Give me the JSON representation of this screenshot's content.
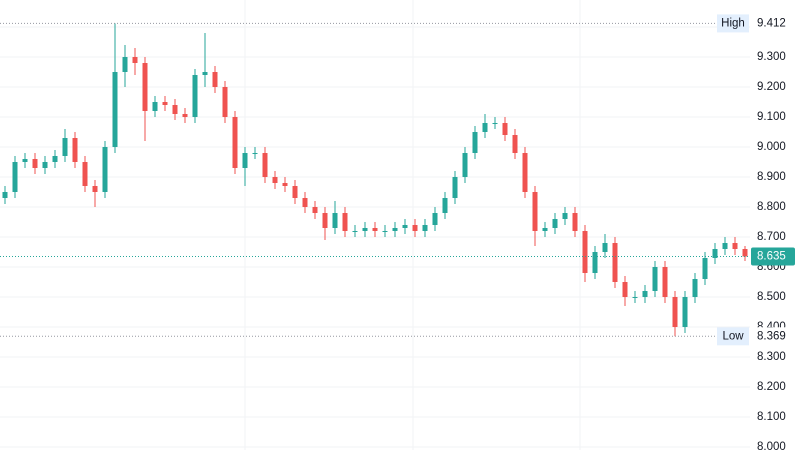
{
  "chart_data": {
    "type": "candlestick",
    "open": [
      8.83,
      8.85,
      8.95,
      8.96,
      8.93,
      8.95,
      8.97,
      9.03,
      8.95,
      8.87,
      8.85,
      9.0,
      9.25,
      9.3,
      9.28,
      9.12,
      9.15,
      9.14,
      9.11,
      9.1,
      9.24,
      9.25,
      9.2,
      9.1,
      8.93,
      8.98,
      8.98,
      8.9,
      8.88,
      8.87,
      8.83,
      8.8,
      8.78,
      8.73,
      8.78,
      8.72,
      8.72,
      8.73,
      8.72,
      8.72,
      8.73,
      8.74,
      8.72,
      8.74,
      8.78,
      8.83,
      8.9,
      8.98,
      9.05,
      9.08,
      9.08,
      9.04,
      8.98,
      8.85,
      8.72,
      8.73,
      8.76,
      8.78,
      8.72,
      8.58,
      8.65,
      8.68,
      8.55,
      8.5,
      8.5,
      8.52,
      8.6,
      8.5,
      8.4,
      8.5,
      8.56,
      8.63,
      8.66,
      8.68,
      8.66
    ],
    "high": [
      8.87,
      8.97,
      8.98,
      8.98,
      8.97,
      8.99,
      9.06,
      9.05,
      8.97,
      8.89,
      9.02,
      9.412,
      9.34,
      9.33,
      9.3,
      9.17,
      9.17,
      9.16,
      9.13,
      9.26,
      9.38,
      9.27,
      9.22,
      9.12,
      9.0,
      9.0,
      9.0,
      8.92,
      8.9,
      8.89,
      8.85,
      8.82,
      8.8,
      8.82,
      8.8,
      8.74,
      8.75,
      8.75,
      8.74,
      8.75,
      8.76,
      8.76,
      8.76,
      8.8,
      8.85,
      8.92,
      9.0,
      9.07,
      9.11,
      9.1,
      9.1,
      9.06,
      9.0,
      8.87,
      8.75,
      8.78,
      8.8,
      8.8,
      8.74,
      8.67,
      8.71,
      8.7,
      8.57,
      8.52,
      8.54,
      8.62,
      8.62,
      8.52,
      8.52,
      8.58,
      8.65,
      8.68,
      8.7,
      8.7,
      8.67
    ],
    "low": [
      8.81,
      8.83,
      8.93,
      8.91,
      8.91,
      8.93,
      8.95,
      8.93,
      8.85,
      8.8,
      8.83,
      8.98,
      9.2,
      9.24,
      9.02,
      9.1,
      9.12,
      9.09,
      9.08,
      9.08,
      9.2,
      9.18,
      9.08,
      8.91,
      8.87,
      8.96,
      8.88,
      8.86,
      8.85,
      8.81,
      8.78,
      8.76,
      8.69,
      8.71,
      8.7,
      8.7,
      8.7,
      8.7,
      8.7,
      8.7,
      8.71,
      8.7,
      8.7,
      8.72,
      8.76,
      8.81,
      8.88,
      8.96,
      9.03,
      9.06,
      9.02,
      8.96,
      8.83,
      8.67,
      8.7,
      8.71,
      8.74,
      8.7,
      8.55,
      8.56,
      8.63,
      8.53,
      8.47,
      8.48,
      8.48,
      8.5,
      8.48,
      8.369,
      8.38,
      8.48,
      8.54,
      8.61,
      8.64,
      8.64,
      8.62
    ],
    "close": [
      8.85,
      8.95,
      8.96,
      8.93,
      8.95,
      8.97,
      9.03,
      8.95,
      8.87,
      8.85,
      9.0,
      9.25,
      9.3,
      9.28,
      9.12,
      9.15,
      9.14,
      9.11,
      9.1,
      9.24,
      9.25,
      9.2,
      9.1,
      8.93,
      8.98,
      8.98,
      8.9,
      8.88,
      8.87,
      8.83,
      8.8,
      8.78,
      8.73,
      8.78,
      8.72,
      8.72,
      8.73,
      8.72,
      8.72,
      8.73,
      8.74,
      8.72,
      8.74,
      8.78,
      8.83,
      8.9,
      8.98,
      9.05,
      9.08,
      9.08,
      9.04,
      8.98,
      8.85,
      8.72,
      8.73,
      8.76,
      8.78,
      8.72,
      8.58,
      8.65,
      8.68,
      8.55,
      8.5,
      8.5,
      8.52,
      8.6,
      8.5,
      8.4,
      8.5,
      8.56,
      8.63,
      8.66,
      8.68,
      8.66,
      8.635
    ],
    "up_color": "#26a69a",
    "down_color": "#ef5350",
    "ylim": [
      7.99,
      9.49
    ],
    "yticks": [
      {
        "value": 8.0,
        "label": "8.000"
      },
      {
        "value": 8.1,
        "label": "8.100"
      },
      {
        "value": 8.2,
        "label": "8.200"
      },
      {
        "value": 8.3,
        "label": "8.300"
      },
      {
        "value": 8.4,
        "label": "8.400"
      },
      {
        "value": 8.5,
        "label": "8.500"
      },
      {
        "value": 8.6,
        "label": "8.600"
      },
      {
        "value": 8.7,
        "label": "8.700"
      },
      {
        "value": 8.8,
        "label": "8.800"
      },
      {
        "value": 8.9,
        "label": "8.900"
      },
      {
        "value": 9.0,
        "label": "9.000"
      },
      {
        "value": 9.1,
        "label": "9.100"
      },
      {
        "value": 9.2,
        "label": "9.200"
      },
      {
        "value": 9.3,
        "label": "9.300"
      },
      {
        "value": 9.4,
        "label": "9.400"
      }
    ],
    "grid": true,
    "markers": [
      {
        "text": "High",
        "value": 9.412
      },
      {
        "text": "Low",
        "value": 8.369
      }
    ],
    "last_price": 8.635
  }
}
